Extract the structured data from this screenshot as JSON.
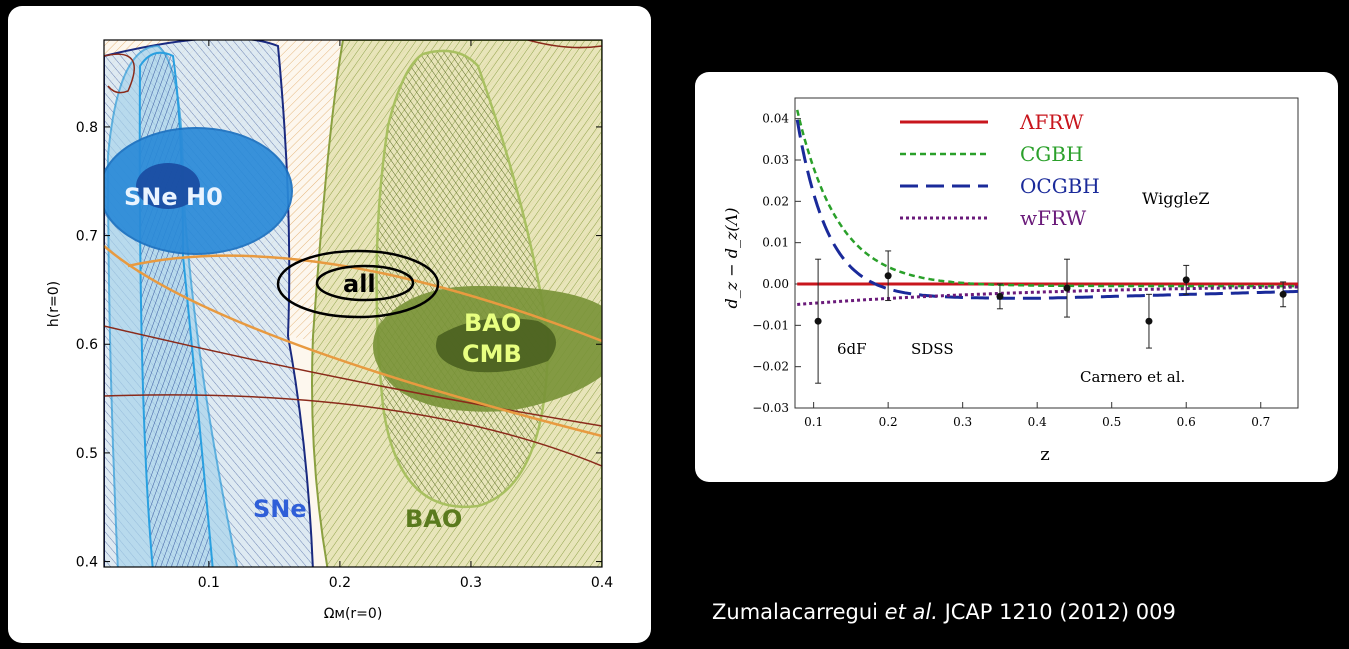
{
  "citation": {
    "authors": "Zumalacarregui",
    "etal": "et al.",
    "journal": "JCAP 1210 (2012) 009"
  },
  "chart_data": [
    {
      "type": "contour",
      "xlabel": "Ωм(r=0)",
      "ylabel": "h(r=0)",
      "xlim": [
        0.02,
        0.4
      ],
      "ylim": [
        0.395,
        0.88
      ],
      "xticks": [
        "0.1",
        "0.2",
        "0.3",
        "0.4"
      ],
      "yticks": [
        "0.4",
        "0.5",
        "0.6",
        "0.7",
        "0.8"
      ],
      "region_labels": [
        {
          "text": "SNe H0",
          "color": "#eaf4ff"
        },
        {
          "text": "all",
          "color": "#000000"
        },
        {
          "text": "BAO",
          "color": "#e8ff80"
        },
        {
          "text": "CMB",
          "color": "#e8ff80"
        },
        {
          "text": "SNe",
          "color": "#2f5fd8"
        },
        {
          "text": "BAO",
          "color": "#5a7a1e"
        }
      ]
    },
    {
      "type": "line",
      "xlabel": "z",
      "ylabel": "d_z − d_z(Λ)",
      "xlim": [
        0.075,
        0.75
      ],
      "ylim": [
        -0.03,
        0.045
      ],
      "xticks": [
        "0.1",
        "0.2",
        "0.3",
        "0.4",
        "0.5",
        "0.6",
        "0.7"
      ],
      "yticks": [
        "0.04",
        "0.03",
        "0.02",
        "0.01",
        "0.00",
        "−0.01",
        "−0.02",
        "−0.03"
      ],
      "series": [
        {
          "name": "ΛFRW",
          "color": "#c8161d"
        },
        {
          "name": "CGBH",
          "color": "#2aa02a"
        },
        {
          "name": "OCGBH",
          "color": "#1a2a9a"
        },
        {
          "name": "wFRW",
          "color": "#6a1a7a"
        }
      ],
      "points": [
        {
          "x": 0.106,
          "y": -0.009,
          "err": 0.015
        },
        {
          "x": 0.2,
          "y": 0.002,
          "err": 0.006
        },
        {
          "x": 0.35,
          "y": -0.003,
          "err": 0.003
        },
        {
          "x": 0.44,
          "y": -0.001,
          "err": 0.007
        },
        {
          "x": 0.55,
          "y": -0.009,
          "err": 0.0065
        },
        {
          "x": 0.6,
          "y": 0.001,
          "err": 0.0035
        },
        {
          "x": 0.73,
          "y": -0.0025,
          "err": 0.003
        }
      ],
      "annotations": [
        "WiggleZ",
        "6dF",
        "SDSS",
        "Carnero et al."
      ]
    }
  ]
}
